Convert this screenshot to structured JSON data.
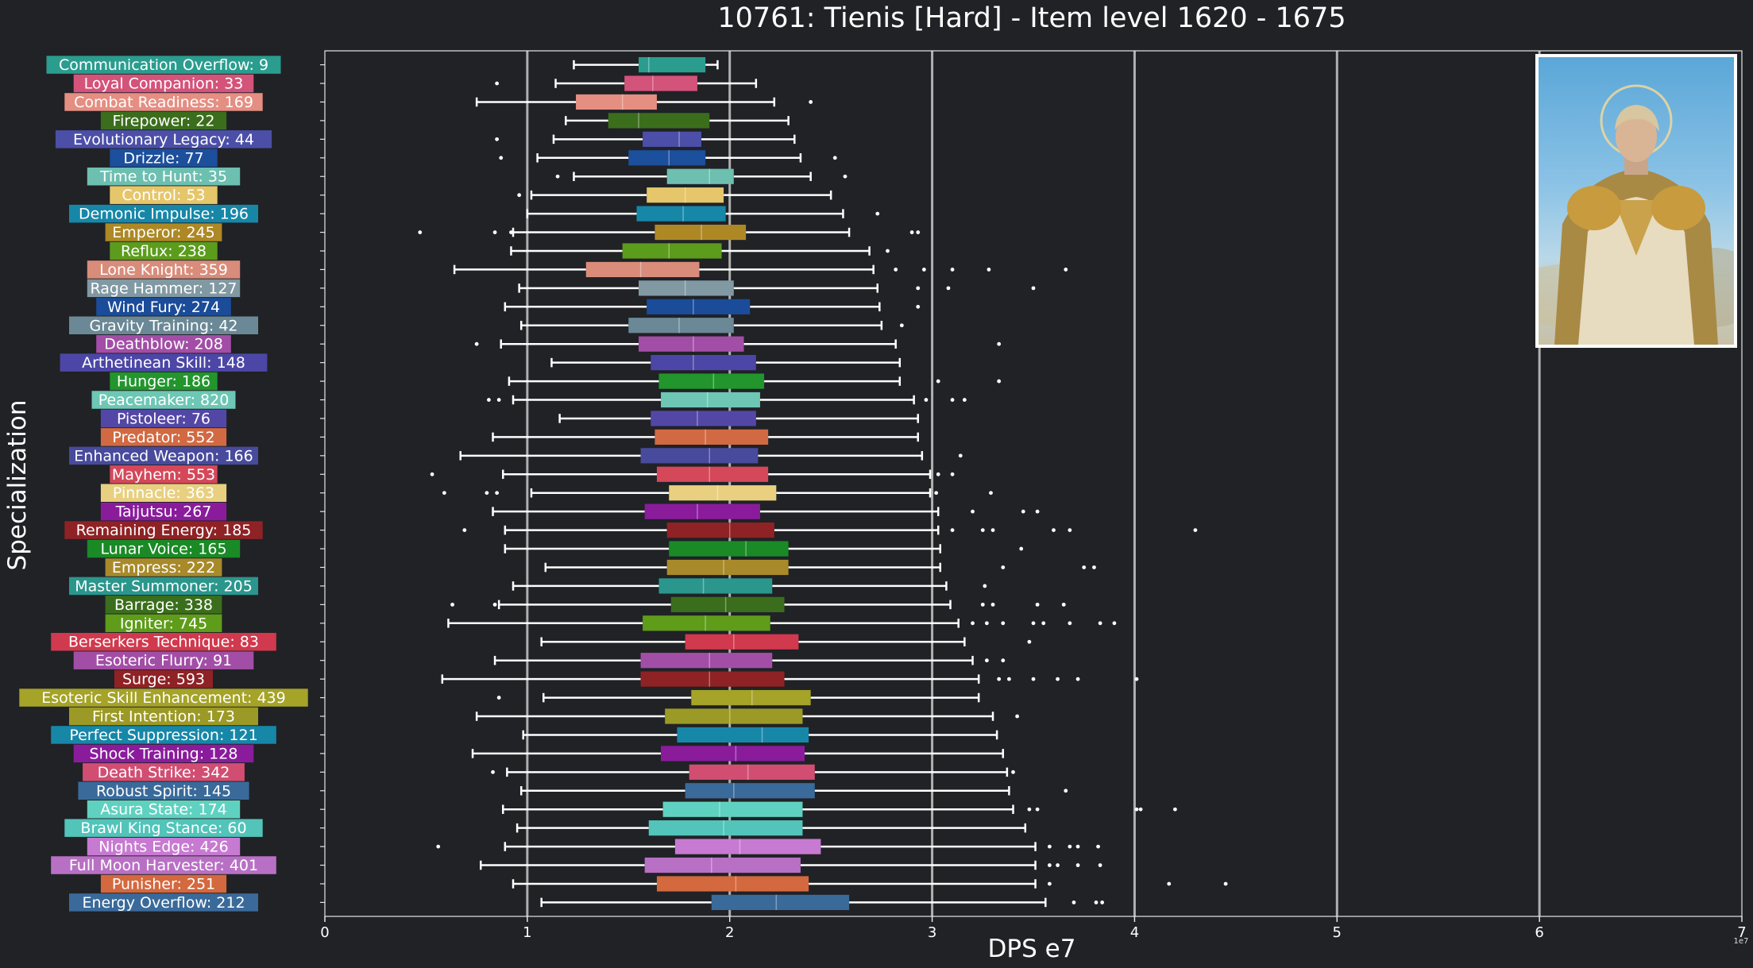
{
  "chart_data": {
    "type": "box",
    "title": "10761: Tienis [Hard] - Item level 1620 - 1675",
    "xlabel": "DPS e7",
    "ylabel": "Specialization",
    "xlim": [
      0,
      7
    ],
    "x_ticks": [
      "0",
      "1",
      "2",
      "3",
      "4",
      "5",
      "6",
      "7"
    ],
    "offset_label": "1e7",
    "grid": "vertical lines at major ticks",
    "categories": [
      {
        "label": "Communication Overflow: 9",
        "color": "#2a9d8f",
        "whislo": 1.23,
        "q1": 1.55,
        "med": 1.6,
        "q3": 1.88,
        "whishi": 1.94,
        "fliers": []
      },
      {
        "label": "Loyal Companion: 33",
        "color": "#d4537a",
        "whislo": 1.14,
        "q1": 1.48,
        "med": 1.62,
        "q3": 1.84,
        "whishi": 2.13,
        "fliers": [
          0.85
        ]
      },
      {
        "label": "Combat Readiness: 169",
        "color": "#e58e82",
        "whislo": 0.75,
        "q1": 1.24,
        "med": 1.47,
        "q3": 1.64,
        "whishi": 2.22,
        "fliers": [
          2.4
        ]
      },
      {
        "label": "Firepower: 22",
        "color": "#3b6e1c",
        "whislo": 1.19,
        "q1": 1.4,
        "med": 1.55,
        "q3": 1.9,
        "whishi": 2.29,
        "fliers": []
      },
      {
        "label": "Evolutionary Legacy: 44",
        "color": "#4b4fa8",
        "whislo": 1.13,
        "q1": 1.57,
        "med": 1.75,
        "q3": 1.86,
        "whishi": 2.32,
        "fliers": [
          0.85
        ]
      },
      {
        "label": "Drizzle: 77",
        "color": "#1c4f9c",
        "whislo": 1.05,
        "q1": 1.5,
        "med": 1.7,
        "q3": 1.88,
        "whishi": 2.35,
        "fliers": [
          0.87,
          2.52
        ]
      },
      {
        "label": "Time to Hunt: 35",
        "color": "#6dbfb0",
        "whislo": 1.23,
        "q1": 1.69,
        "med": 1.9,
        "q3": 2.02,
        "whishi": 2.4,
        "fliers": [
          1.15,
          2.57
        ]
      },
      {
        "label": "Control: 53",
        "color": "#e6c66a",
        "whislo": 1.02,
        "q1": 1.59,
        "med": 1.78,
        "q3": 1.97,
        "whishi": 2.5,
        "fliers": [
          0.96
        ]
      },
      {
        "label": "Demonic Impulse: 196",
        "color": "#1787a8",
        "whislo": 1.0,
        "q1": 1.54,
        "med": 1.77,
        "q3": 1.98,
        "whishi": 2.56,
        "fliers": [
          2.73
        ]
      },
      {
        "label": "Emperor: 245",
        "color": "#ad8825",
        "whislo": 0.93,
        "q1": 1.63,
        "med": 1.86,
        "q3": 2.08,
        "whishi": 2.59,
        "fliers": [
          0.47,
          0.84,
          0.92,
          2.9,
          2.93
        ]
      },
      {
        "label": "Reflux: 238",
        "color": "#5c9c1c",
        "whislo": 0.92,
        "q1": 1.47,
        "med": 1.7,
        "q3": 1.96,
        "whishi": 2.69,
        "fliers": [
          2.78
        ]
      },
      {
        "label": "Lone Knight: 359",
        "color": "#d98c7a",
        "whislo": 0.64,
        "q1": 1.29,
        "med": 1.56,
        "q3": 1.85,
        "whishi": 2.71,
        "fliers": [
          2.82,
          2.96,
          3.1,
          3.28,
          3.66
        ]
      },
      {
        "label": "Rage Hammer: 127",
        "color": "#8199a3",
        "whislo": 0.96,
        "q1": 1.55,
        "med": 1.78,
        "q3": 2.02,
        "whishi": 2.73,
        "fliers": [
          2.93,
          3.08,
          3.5
        ]
      },
      {
        "label": "Wind Fury: 274",
        "color": "#1b4c99",
        "whislo": 0.89,
        "q1": 1.59,
        "med": 1.82,
        "q3": 2.1,
        "whishi": 2.74,
        "fliers": [
          2.93
        ]
      },
      {
        "label": "Gravity Training: 42",
        "color": "#6b8896",
        "whislo": 0.97,
        "q1": 1.5,
        "med": 1.75,
        "q3": 2.02,
        "whishi": 2.75,
        "fliers": [
          2.85
        ]
      },
      {
        "label": "Deathblow: 208",
        "color": "#a24ea6",
        "whislo": 0.87,
        "q1": 1.55,
        "med": 1.82,
        "q3": 2.07,
        "whishi": 2.82,
        "fliers": [
          0.75,
          3.33
        ]
      },
      {
        "label": "Arthetinean Skill: 148",
        "color": "#4c47a6",
        "whislo": 1.12,
        "q1": 1.61,
        "med": 1.82,
        "q3": 2.13,
        "whishi": 2.84,
        "fliers": []
      },
      {
        "label": "Hunger: 186",
        "color": "#22952d",
        "whislo": 0.91,
        "q1": 1.65,
        "med": 1.92,
        "q3": 2.17,
        "whishi": 2.84,
        "fliers": [
          3.03,
          3.33
        ]
      },
      {
        "label": "Peacemaker: 820",
        "color": "#6dc7b4",
        "whislo": 0.93,
        "q1": 1.66,
        "med": 1.89,
        "q3": 2.15,
        "whishi": 2.91,
        "fliers": [
          0.81,
          0.86,
          2.97,
          3.1,
          3.16
        ]
      },
      {
        "label": "Pistoleer: 76",
        "color": "#5347a6",
        "whislo": 1.16,
        "q1": 1.61,
        "med": 1.84,
        "q3": 2.13,
        "whishi": 2.93,
        "fliers": []
      },
      {
        "label": "Predator: 552",
        "color": "#d16a43",
        "whislo": 0.83,
        "q1": 1.63,
        "med": 1.88,
        "q3": 2.19,
        "whishi": 2.93,
        "fliers": []
      },
      {
        "label": "Enhanced Weapon: 166",
        "color": "#484a9c",
        "whislo": 0.67,
        "q1": 1.56,
        "med": 1.9,
        "q3": 2.14,
        "whishi": 2.95,
        "fliers": [
          3.14
        ]
      },
      {
        "label": "Mayhem: 553",
        "color": "#d4485a",
        "whislo": 0.88,
        "q1": 1.64,
        "med": 1.9,
        "q3": 2.19,
        "whishi": 2.99,
        "fliers": [
          0.53,
          3.03,
          3.1
        ]
      },
      {
        "label": "Pinnacle: 363",
        "color": "#e8d080",
        "whislo": 1.02,
        "q1": 1.7,
        "med": 1.94,
        "q3": 2.23,
        "whishi": 2.99,
        "fliers": [
          0.59,
          0.8,
          0.85,
          3.02,
          3.29
        ]
      },
      {
        "label": "Taijutsu: 267",
        "color": "#8a1c9c",
        "whislo": 0.83,
        "q1": 1.58,
        "med": 1.84,
        "q3": 2.15,
        "whishi": 3.03,
        "fliers": [
          3.2,
          3.45,
          3.52
        ]
      },
      {
        "label": "Remaining Energy: 185",
        "color": "#8f2225",
        "whislo": 0.89,
        "q1": 1.69,
        "med": 2.0,
        "q3": 2.22,
        "whishi": 3.03,
        "fliers": [
          0.69,
          3.1,
          3.25,
          3.3,
          3.6,
          3.68,
          4.3
        ]
      },
      {
        "label": "Lunar Voice: 165",
        "color": "#1a8a26",
        "whislo": 0.89,
        "q1": 1.7,
        "med": 2.08,
        "q3": 2.29,
        "whishi": 3.04,
        "fliers": [
          3.44
        ]
      },
      {
        "label": "Empress: 222",
        "color": "#a88a2a",
        "whislo": 1.09,
        "q1": 1.69,
        "med": 1.97,
        "q3": 2.29,
        "whishi": 3.04,
        "fliers": [
          3.35,
          3.75,
          3.8
        ]
      },
      {
        "label": "Master Summoner: 205",
        "color": "#2b968c",
        "whislo": 0.93,
        "q1": 1.65,
        "med": 1.87,
        "q3": 2.21,
        "whishi": 3.07,
        "fliers": [
          3.26
        ]
      },
      {
        "label": "Barrage: 338",
        "color": "#3b6e1c",
        "whislo": 0.86,
        "q1": 1.71,
        "med": 1.98,
        "q3": 2.27,
        "whishi": 3.09,
        "fliers": [
          0.63,
          0.84,
          3.25,
          3.3,
          3.52,
          3.65
        ]
      },
      {
        "label": "Igniter: 745",
        "color": "#5e9c1a",
        "whislo": 0.61,
        "q1": 1.57,
        "med": 1.88,
        "q3": 2.2,
        "whishi": 3.13,
        "fliers": [
          3.2,
          3.27,
          3.35,
          3.5,
          3.55,
          3.68,
          3.83,
          3.9
        ]
      },
      {
        "label": "Berserkers Technique: 83",
        "color": "#d1394e",
        "whislo": 1.07,
        "q1": 1.78,
        "med": 2.02,
        "q3": 2.34,
        "whishi": 3.16,
        "fliers": [
          3.48
        ]
      },
      {
        "label": "Esoteric Flurry: 91",
        "color": "#a24ea6",
        "whislo": 0.84,
        "q1": 1.56,
        "med": 1.9,
        "q3": 2.21,
        "whishi": 3.2,
        "fliers": [
          3.27,
          3.35
        ]
      },
      {
        "label": "Surge: 593",
        "color": "#8f2225",
        "whislo": 0.58,
        "q1": 1.56,
        "med": 1.9,
        "q3": 2.27,
        "whishi": 3.23,
        "fliers": [
          3.33,
          3.38,
          3.5,
          3.62,
          3.72,
          4.01
        ]
      },
      {
        "label": "Esoteric Skill Enhancement: 439",
        "color": "#a5a328",
        "whislo": 1.08,
        "q1": 1.81,
        "med": 2.11,
        "q3": 2.4,
        "whishi": 3.23,
        "fliers": [
          0.86
        ]
      },
      {
        "label": "First Intention: 173",
        "color": "#9c9a26",
        "whislo": 0.75,
        "q1": 1.68,
        "med": 2.0,
        "q3": 2.36,
        "whishi": 3.3,
        "fliers": [
          3.42
        ]
      },
      {
        "label": "Perfect Suppression: 121",
        "color": "#1787a8",
        "whislo": 0.98,
        "q1": 1.74,
        "med": 2.16,
        "q3": 2.39,
        "whishi": 3.32,
        "fliers": []
      },
      {
        "label": "Shock Training: 128",
        "color": "#8a1c9c",
        "whislo": 0.73,
        "q1": 1.66,
        "med": 2.03,
        "q3": 2.37,
        "whishi": 3.35,
        "fliers": []
      },
      {
        "label": "Death Strike: 342",
        "color": "#d14e72",
        "whislo": 0.9,
        "q1": 1.8,
        "med": 2.09,
        "q3": 2.42,
        "whishi": 3.37,
        "fliers": [
          0.83,
          3.4
        ]
      },
      {
        "label": "Robust Spirit: 145",
        "color": "#3a6a9a",
        "whislo": 0.97,
        "q1": 1.78,
        "med": 2.02,
        "q3": 2.42,
        "whishi": 3.38,
        "fliers": [
          3.66
        ]
      },
      {
        "label": "Asura State: 174",
        "color": "#5fd1c0",
        "whislo": 0.88,
        "q1": 1.67,
        "med": 1.95,
        "q3": 2.36,
        "whishi": 3.4,
        "fliers": [
          3.48,
          3.52,
          4.01,
          4.03,
          4.2
        ]
      },
      {
        "label": "Brawl King Stance: 60",
        "color": "#52c4ba",
        "whislo": 0.95,
        "q1": 1.6,
        "med": 1.97,
        "q3": 2.36,
        "whishi": 3.46,
        "fliers": []
      },
      {
        "label": "Nights Edge: 426",
        "color": "#c77ad1",
        "whislo": 0.89,
        "q1": 1.73,
        "med": 2.05,
        "q3": 2.45,
        "whishi": 3.51,
        "fliers": [
          0.56,
          3.58,
          3.68,
          3.72,
          3.82
        ]
      },
      {
        "label": "Full Moon Harvester: 401",
        "color": "#b870c4",
        "whislo": 0.77,
        "q1": 1.58,
        "med": 1.91,
        "q3": 2.35,
        "whishi": 3.51,
        "fliers": [
          3.58,
          3.62,
          3.72,
          3.83
        ]
      },
      {
        "label": "Punisher: 251",
        "color": "#d4683e",
        "whislo": 0.93,
        "q1": 1.64,
        "med": 2.03,
        "q3": 2.39,
        "whishi": 3.51,
        "fliers": [
          3.58,
          4.17,
          4.45
        ]
      },
      {
        "label": "Energy Overflow: 212",
        "color": "#3a6a9a",
        "whislo": 1.07,
        "q1": 1.91,
        "med": 2.23,
        "q3": 2.59,
        "whishi": 3.56,
        "fliers": [
          3.7,
          3.81,
          3.84
        ]
      }
    ]
  }
}
